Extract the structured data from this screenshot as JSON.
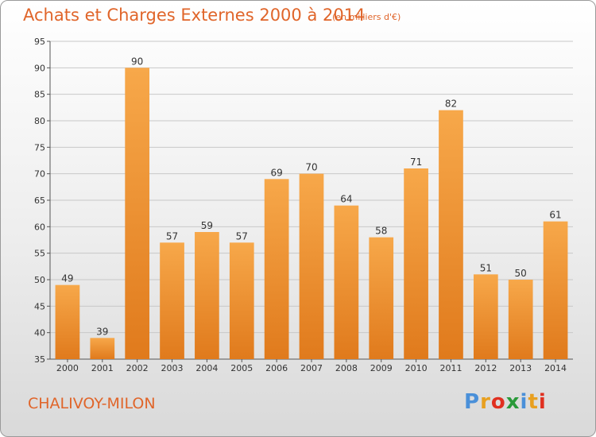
{
  "title": "Achats et Charges Externes 2000 à 2014",
  "subtitle": "(en milliers d'€)",
  "place_name": "CHALIVOY-MILON",
  "logo": {
    "text": "Proxiti",
    "letters": [
      {
        "ch": "P",
        "color": "#4a90d9"
      },
      {
        "ch": "r",
        "color": "#e8a020"
      },
      {
        "ch": "o",
        "color": "#e03020"
      },
      {
        "ch": "x",
        "color": "#2a9a3a"
      },
      {
        "ch": "i",
        "color": "#4a90d9"
      },
      {
        "ch": "t",
        "color": "#e8a020"
      },
      {
        "ch": "i",
        "color": "#e03020"
      }
    ]
  },
  "colors": {
    "title": "#e0652a",
    "bar_light": "#f7a84a",
    "bar_dark": "#e07a1c",
    "grid": "#c8c8c8"
  },
  "chart_data": {
    "type": "bar",
    "categories": [
      "2000",
      "2001",
      "2002",
      "2003",
      "2004",
      "2005",
      "2006",
      "2007",
      "2008",
      "2009",
      "2010",
      "2011",
      "2012",
      "2013",
      "2014"
    ],
    "values": [
      49,
      39,
      90,
      57,
      59,
      57,
      69,
      70,
      64,
      58,
      71,
      82,
      51,
      50,
      61
    ],
    "ylim": [
      35,
      95
    ],
    "yticks": [
      35,
      40,
      45,
      50,
      55,
      60,
      65,
      70,
      75,
      80,
      85,
      90,
      95
    ],
    "grid": true,
    "data_labels": true
  }
}
